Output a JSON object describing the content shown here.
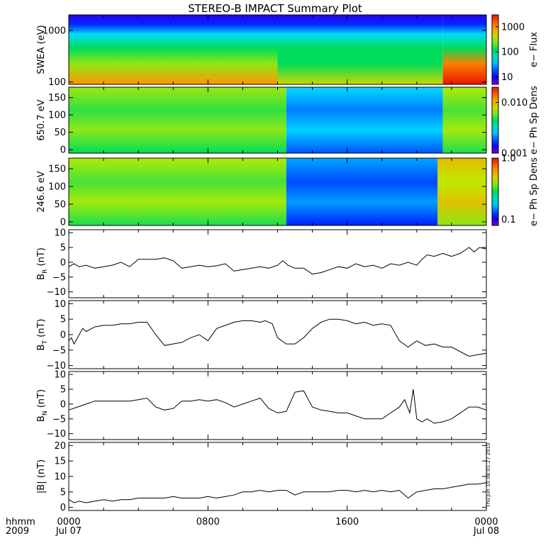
{
  "chart_data": {
    "type": "line",
    "title": "STEREO-B IMPACT Summary Plot",
    "time_axis": {
      "range_hours": [
        0,
        24
      ],
      "ticks": [
        {
          "hour": 0,
          "time": "0000",
          "date": "Jul 07"
        },
        {
          "hour": 8,
          "time": "0800",
          "date": ""
        },
        {
          "hour": 16,
          "time": "1600",
          "date": ""
        },
        {
          "hour": 24,
          "time": "0000",
          "date": "Jul 08"
        }
      ],
      "row_label_time": "hhmm",
      "row_label_year": "2009"
    },
    "timestamp": "Thu Jun 10 08:01:27 2010",
    "panels": [
      {
        "id": "swea",
        "type": "heatmap",
        "ylabel": "SWEA (eV)",
        "yscale": "log",
        "ylim": [
          90,
          2000
        ],
        "yticks": [
          {
            "v": 100,
            "label": "100"
          },
          {
            "v": 1000,
            "label": "1000"
          }
        ],
        "colorbar": {
          "label": "e− Flux",
          "scale": "log",
          "range": [
            5,
            3000
          ],
          "ticks": [
            {
              "v": 10,
              "label": "10"
            },
            {
              "v": 100,
              "label": "100"
            },
            {
              "v": 1000,
              "label": "1000"
            }
          ]
        },
        "regimes": [
          {
            "start_hour": 0,
            "end_hour": 12,
            "low_energy_flux_level": 0.62
          },
          {
            "start_hour": 12,
            "end_hour": 21.5,
            "low_energy_flux_level": 0.5
          },
          {
            "start_hour": 21.5,
            "end_hour": 24,
            "low_energy_flux_level": 0.85
          }
        ]
      },
      {
        "id": "pad650",
        "type": "heatmap",
        "ylabel": "650.7 eV",
        "ylim": [
          -10,
          180
        ],
        "yticks": [
          {
            "v": 0,
            "label": "0"
          },
          {
            "v": 50,
            "label": "50"
          },
          {
            "v": 100,
            "label": "100"
          },
          {
            "v": 150,
            "label": "150"
          }
        ],
        "colorbar": {
          "label": "e− Ph Sp Dens",
          "scale": "log",
          "range": [
            0.001,
            0.02
          ],
          "ticks": [
            {
              "v": 0.001,
              "label": "0.001"
            },
            {
              "v": 0.01,
              "label": "0.010"
            }
          ]
        },
        "regimes": [
          {
            "start_hour": 0,
            "end_hour": 12.5,
            "level": 0.6
          },
          {
            "start_hour": 12.5,
            "end_hour": 21.5,
            "level": 0.3
          },
          {
            "start_hour": 21.5,
            "end_hour": 24,
            "level": 0.62
          }
        ]
      },
      {
        "id": "pad246",
        "type": "heatmap",
        "ylabel": "246.6 eV",
        "ylim": [
          -10,
          180
        ],
        "yticks": [
          {
            "v": 0,
            "label": "0"
          },
          {
            "v": 50,
            "label": "50"
          },
          {
            "v": 100,
            "label": "100"
          },
          {
            "v": 150,
            "label": "150"
          }
        ],
        "colorbar": {
          "label": "e− Ph Sp Dens",
          "scale": "log",
          "range": [
            0.08,
            1.0
          ],
          "ticks": [
            {
              "v": 0.1,
              "label": "0.1"
            },
            {
              "v": 1.0,
              "label": "1.0"
            }
          ]
        },
        "regimes": [
          {
            "start_hour": 0,
            "end_hour": 12.5,
            "level": 0.62
          },
          {
            "start_hour": 12.5,
            "end_hour": 21.2,
            "level": 0.25
          },
          {
            "start_hour": 21.2,
            "end_hour": 24,
            "level": 0.72
          }
        ]
      },
      {
        "id": "br",
        "type": "line",
        "ylabel_main": "B",
        "ylabel_sub": "R",
        "ylabel_unit": " (nT)",
        "ylim": [
          -12,
          11
        ],
        "yticks": [
          {
            "v": -10,
            "label": "−10"
          },
          {
            "v": -5,
            "label": "−5"
          },
          {
            "v": 0,
            "label": "0"
          },
          {
            "v": 5,
            "label": "5"
          },
          {
            "v": 10,
            "label": "10"
          }
        ],
        "x": [
          0,
          0.3,
          0.6,
          1,
          1.5,
          2,
          2.5,
          3,
          3.5,
          4,
          4.5,
          5,
          5.5,
          6,
          6.5,
          7,
          7.5,
          8,
          8.5,
          9,
          9.5,
          10,
          10.5,
          11,
          11.5,
          12,
          12.3,
          12.6,
          13,
          13.5,
          14,
          14.5,
          15,
          15.5,
          16,
          16.5,
          17,
          17.5,
          18,
          18.5,
          19,
          19.5,
          20,
          20.3,
          20.6,
          21,
          21.5,
          22,
          22.5,
          23,
          23.3,
          23.6,
          24
        ],
        "y": [
          -1.5,
          -0.5,
          -1.5,
          -1,
          -2,
          -1.5,
          -1,
          0,
          -1.5,
          1,
          1,
          1,
          1.5,
          0.5,
          -2,
          -1.5,
          -1,
          -1.5,
          -1.2,
          -0.5,
          -3,
          -2.5,
          -2,
          -1.5,
          -2,
          -1,
          0.5,
          -1,
          -2,
          -2,
          -4,
          -3.5,
          -2.5,
          -1.5,
          -2,
          -0.5,
          -1.5,
          -1,
          -2,
          -0.5,
          -1,
          0,
          -1,
          1,
          2.5,
          2,
          3,
          2,
          3,
          5,
          3.5,
          5,
          4.5
        ]
      },
      {
        "id": "bt",
        "type": "line",
        "ylabel_main": "B",
        "ylabel_sub": "T",
        "ylabel_unit": " (nT)",
        "ylim": [
          -11,
          11
        ],
        "yticks": [
          {
            "v": -10,
            "label": "−10"
          },
          {
            "v": -5,
            "label": "−5"
          },
          {
            "v": 0,
            "label": "0"
          },
          {
            "v": 5,
            "label": "5"
          },
          {
            "v": 10,
            "label": "10"
          }
        ],
        "x": [
          0,
          0.15,
          0.3,
          0.5,
          0.8,
          1,
          1.5,
          2,
          2.5,
          3,
          3.5,
          4,
          4.5,
          5,
          5.5,
          6,
          6.5,
          7,
          7.5,
          8,
          8.5,
          9,
          9.5,
          10,
          10.5,
          11,
          11.3,
          11.7,
          12,
          12.5,
          13,
          13.5,
          14,
          14.5,
          15,
          15.5,
          16,
          16.5,
          17,
          17.5,
          18,
          18.5,
          19,
          19.5,
          20,
          20.5,
          21,
          21.5,
          22,
          22.5,
          23,
          23.5,
          24
        ],
        "y": [
          -2,
          -1,
          -3,
          -1,
          2,
          1,
          2.5,
          3,
          3,
          3.5,
          3.5,
          4,
          4,
          0,
          -3.5,
          -3,
          -2.5,
          -1,
          0,
          -2,
          2,
          3,
          4,
          4.5,
          4.5,
          4,
          4.5,
          3.5,
          -1,
          -3,
          -3,
          -1,
          2,
          4,
          5,
          5,
          4.5,
          3.5,
          4,
          3,
          3.5,
          3,
          -2,
          -4,
          -2,
          -3.5,
          -3,
          -4,
          -4,
          -5.5,
          -7,
          -6.5,
          -6
        ]
      },
      {
        "id": "bn",
        "type": "line",
        "ylabel_main": "B",
        "ylabel_sub": "N",
        "ylabel_unit": " (nT)",
        "ylim": [
          -12,
          11
        ],
        "yticks": [
          {
            "v": -10,
            "label": "−10"
          },
          {
            "v": -5,
            "label": "−5"
          },
          {
            "v": 0,
            "label": "0"
          },
          {
            "v": 5,
            "label": "5"
          },
          {
            "v": 10,
            "label": "10"
          }
        ],
        "x": [
          0,
          0.5,
          1,
          1.5,
          2,
          2.5,
          3,
          3.5,
          4,
          4.5,
          5,
          5.5,
          6,
          6.5,
          7,
          7.5,
          8,
          8.5,
          9,
          9.5,
          10,
          10.5,
          11,
          11.5,
          12,
          12.5,
          13,
          13.5,
          14,
          14.5,
          15,
          15.5,
          16,
          16.5,
          17,
          17.5,
          18,
          18.5,
          19,
          19.3,
          19.6,
          19.8,
          20,
          20.3,
          20.6,
          21,
          21.5,
          22,
          22.5,
          23,
          23.5,
          24
        ],
        "y": [
          -2,
          -1,
          0,
          1,
          1,
          1,
          1,
          1,
          1.5,
          2,
          -1,
          -2,
          -1.5,
          1,
          1,
          1.5,
          1,
          1.5,
          0.5,
          -1,
          0,
          1,
          2,
          -1.5,
          -3,
          -2.5,
          4,
          4.5,
          -1,
          -2,
          -2.5,
          -3,
          -3,
          -4,
          -5,
          -5,
          -5,
          -3,
          -1,
          1.5,
          -3,
          5,
          -5,
          -6,
          -5,
          -6.5,
          -6,
          -5,
          -3,
          -1,
          -1,
          -2
        ]
      },
      {
        "id": "bmag",
        "type": "line",
        "ylabel_main": "|B|",
        "ylabel_sub": "",
        "ylabel_unit": " (nT)",
        "ylim": [
          -1,
          21
        ],
        "yticks": [
          {
            "v": 0,
            "label": "0"
          },
          {
            "v": 5,
            "label": "5"
          },
          {
            "v": 10,
            "label": "10"
          },
          {
            "v": 15,
            "label": "15"
          },
          {
            "v": 20,
            "label": "20"
          }
        ],
        "x": [
          0,
          0.3,
          0.6,
          1,
          1.5,
          2,
          2.5,
          3,
          3.5,
          4,
          4.5,
          5,
          5.5,
          6,
          6.5,
          7,
          7.5,
          8,
          8.5,
          9,
          9.5,
          10,
          10.5,
          11,
          11.5,
          12,
          12.5,
          13,
          13.5,
          14,
          14.5,
          15,
          15.5,
          16,
          16.5,
          17,
          17.5,
          18,
          18.5,
          19,
          19.5,
          20,
          20.5,
          21,
          21.5,
          22,
          22.5,
          23,
          23.5,
          24
        ],
        "y": [
          2.5,
          1.5,
          2,
          1.5,
          2,
          2.5,
          2,
          2.5,
          2.5,
          3,
          3,
          3,
          3,
          3.5,
          3,
          3,
          3,
          3.5,
          3,
          3.5,
          4,
          5,
          5,
          5.5,
          5,
          5.5,
          5.5,
          4,
          5,
          5,
          5,
          5,
          5.5,
          5.5,
          5,
          5.5,
          5,
          5.5,
          5,
          5.5,
          3,
          5,
          5.5,
          6,
          6,
          6.5,
          7,
          7.5,
          7.5,
          8
        ]
      }
    ]
  }
}
